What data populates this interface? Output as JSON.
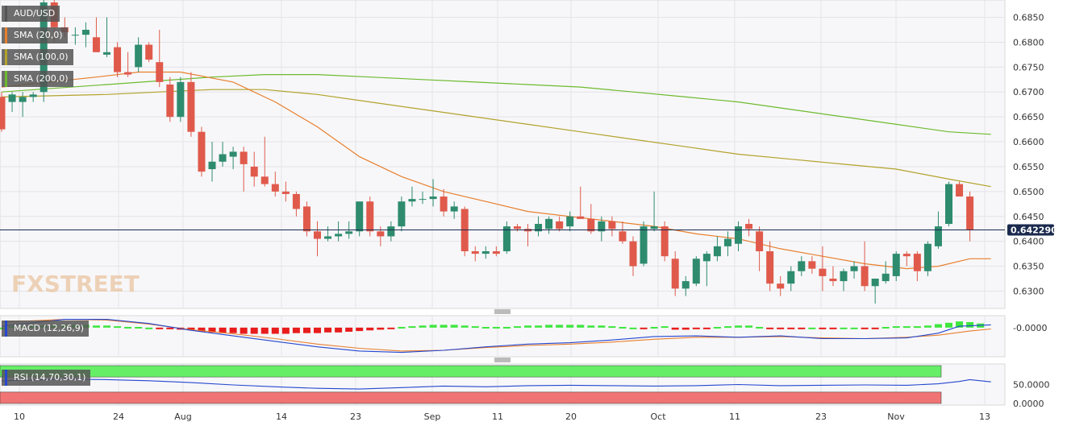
{
  "symbol": "AUD/USD",
  "brand_watermark": "FXSTREET",
  "colors": {
    "up": "#2e8b6e",
    "down": "#e05a4c",
    "sma20": "#e87f2e",
    "sma100": "#b3a22c",
    "sma200": "#6dba2e",
    "macd_line": "#2547d0",
    "macd_signal": "#e87f2e",
    "macd_hist_up": "#3ee63e",
    "macd_hist_down": "#e81c1c",
    "rsi_line": "#2547d0",
    "rsi_overbought": "#66ee66",
    "rsi_oversold": "#f07474",
    "price_line": "#1a2a4e"
  },
  "legend": {
    "main": [
      "AUD/USD",
      "SMA (20,0)",
      "SMA (100,0)",
      "SMA (200,0)"
    ],
    "macd": "MACD (12,26,9)",
    "rsi": "RSI (14,70,30,1)"
  },
  "price_tag": "0.642290",
  "main_y_ticks": [
    "0.6850",
    "0.6800",
    "0.6750",
    "0.6700",
    "0.6650",
    "0.6600",
    "0.6550",
    "0.6500",
    "0.6450",
    "0.6400",
    "0.6350",
    "0.6300"
  ],
  "macd_y_ticks": [
    "-0.0000"
  ],
  "rsi_y_ticks": [
    "50.0000",
    "0.0000"
  ],
  "x_ticks": [
    "10",
    "24",
    "Aug",
    "14",
    "23",
    "Sep",
    "11",
    "20",
    "Oct",
    "11",
    "23",
    "Nov",
    "13"
  ],
  "chart_data": {
    "type": "candlestick",
    "title": "AUD/USD",
    "ylim": [
      0.627,
      0.688
    ],
    "current_price": 0.64229,
    "candles": [
      [
        0.669,
        0.67,
        0.662,
        0.6625
      ],
      [
        0.668,
        0.67,
        0.666,
        0.6695
      ],
      [
        0.668,
        0.67,
        0.665,
        0.669
      ],
      [
        0.669,
        0.67,
        0.668,
        0.6695
      ],
      [
        0.67,
        0.689,
        0.668,
        0.688
      ],
      [
        0.688,
        0.69,
        0.68,
        0.683
      ],
      [
        0.683,
        0.685,
        0.681,
        0.682
      ],
      [
        0.6815,
        0.683,
        0.6795,
        0.6815
      ],
      [
        0.6815,
        0.684,
        0.679,
        0.6825
      ],
      [
        0.681,
        0.685,
        0.678,
        0.678
      ],
      [
        0.6775,
        0.685,
        0.677,
        0.678
      ],
      [
        0.679,
        0.68,
        0.673,
        0.674
      ],
      [
        0.674,
        0.678,
        0.673,
        0.6735
      ],
      [
        0.675,
        0.681,
        0.674,
        0.6795
      ],
      [
        0.6795,
        0.68,
        0.676,
        0.6765
      ],
      [
        0.676,
        0.6825,
        0.671,
        0.672
      ],
      [
        0.6715,
        0.673,
        0.664,
        0.665
      ],
      [
        0.665,
        0.673,
        0.664,
        0.672
      ],
      [
        0.672,
        0.674,
        0.661,
        0.662
      ],
      [
        0.662,
        0.663,
        0.653,
        0.654
      ],
      [
        0.6545,
        0.66,
        0.652,
        0.656
      ],
      [
        0.656,
        0.66,
        0.655,
        0.6575
      ],
      [
        0.657,
        0.659,
        0.6545,
        0.658
      ],
      [
        0.658,
        0.659,
        0.65,
        0.6555
      ],
      [
        0.655,
        0.658,
        0.651,
        0.653
      ],
      [
        0.653,
        0.661,
        0.651,
        0.6515
      ],
      [
        0.6515,
        0.654,
        0.649,
        0.65
      ],
      [
        0.65,
        0.652,
        0.648,
        0.6495
      ],
      [
        0.6495,
        0.65,
        0.645,
        0.6465
      ],
      [
        0.647,
        0.648,
        0.641,
        0.642
      ],
      [
        0.642,
        0.644,
        0.637,
        0.6405
      ],
      [
        0.6405,
        0.643,
        0.64,
        0.641
      ],
      [
        0.641,
        0.644,
        0.64,
        0.6415
      ],
      [
        0.6415,
        0.644,
        0.6405,
        0.642
      ],
      [
        0.642,
        0.648,
        0.641,
        0.648
      ],
      [
        0.648,
        0.649,
        0.641,
        0.642
      ],
      [
        0.642,
        0.643,
        0.639,
        0.641
      ],
      [
        0.641,
        0.644,
        0.64,
        0.643
      ],
      [
        0.643,
        0.649,
        0.642,
        0.648
      ],
      [
        0.648,
        0.651,
        0.647,
        0.6485
      ],
      [
        0.6485,
        0.65,
        0.6475,
        0.6485
      ],
      [
        0.6485,
        0.6525,
        0.647,
        0.649
      ],
      [
        0.649,
        0.6505,
        0.645,
        0.646
      ],
      [
        0.646,
        0.648,
        0.6445,
        0.647
      ],
      [
        0.6465,
        0.647,
        0.637,
        0.638
      ],
      [
        0.638,
        0.639,
        0.636,
        0.6375
      ],
      [
        0.6375,
        0.639,
        0.6365,
        0.638
      ],
      [
        0.638,
        0.639,
        0.637,
        0.6375
      ],
      [
        0.638,
        0.644,
        0.6375,
        0.643
      ],
      [
        0.643,
        0.6435,
        0.642,
        0.6425
      ],
      [
        0.6425,
        0.6435,
        0.639,
        0.642
      ],
      [
        0.642,
        0.645,
        0.641,
        0.6435
      ],
      [
        0.6425,
        0.645,
        0.6415,
        0.6445
      ],
      [
        0.644,
        0.645,
        0.642,
        0.6425
      ],
      [
        0.643,
        0.646,
        0.642,
        0.645
      ],
      [
        0.645,
        0.651,
        0.6445,
        0.6445
      ],
      [
        0.6445,
        0.6475,
        0.6415,
        0.642
      ],
      [
        0.642,
        0.645,
        0.64,
        0.644
      ],
      [
        0.644,
        0.645,
        0.641,
        0.6425
      ],
      [
        0.642,
        0.644,
        0.6395,
        0.64
      ],
      [
        0.64,
        0.641,
        0.633,
        0.635
      ],
      [
        0.6355,
        0.644,
        0.635,
        0.643
      ],
      [
        0.6425,
        0.65,
        0.642,
        0.643
      ],
      [
        0.643,
        0.644,
        0.636,
        0.637
      ],
      [
        0.6365,
        0.638,
        0.629,
        0.6305
      ],
      [
        0.6305,
        0.633,
        0.629,
        0.632
      ],
      [
        0.6315,
        0.637,
        0.631,
        0.6365
      ],
      [
        0.636,
        0.638,
        0.631,
        0.6375
      ],
      [
        0.637,
        0.641,
        0.636,
        0.639
      ],
      [
        0.639,
        0.642,
        0.637,
        0.6405
      ],
      [
        0.6395,
        0.644,
        0.638,
        0.643
      ],
      [
        0.6435,
        0.6445,
        0.641,
        0.6425
      ],
      [
        0.642,
        0.643,
        0.634,
        0.638
      ],
      [
        0.638,
        0.64,
        0.63,
        0.6315
      ],
      [
        0.6315,
        0.633,
        0.629,
        0.6305
      ],
      [
        0.6315,
        0.635,
        0.63,
        0.634
      ],
      [
        0.634,
        0.637,
        0.633,
        0.636
      ],
      [
        0.636,
        0.637,
        0.6335,
        0.6345
      ],
      [
        0.6345,
        0.639,
        0.63,
        0.633
      ],
      [
        0.6325,
        0.635,
        0.631,
        0.632
      ],
      [
        0.632,
        0.6345,
        0.63,
        0.634
      ],
      [
        0.634,
        0.636,
        0.6325,
        0.635
      ],
      [
        0.635,
        0.64,
        0.63,
        0.631
      ],
      [
        0.631,
        0.632,
        0.6275,
        0.6325
      ],
      [
        0.632,
        0.636,
        0.6315,
        0.6335
      ],
      [
        0.633,
        0.638,
        0.632,
        0.6375
      ],
      [
        0.6375,
        0.638,
        0.635,
        0.637
      ],
      [
        0.6375,
        0.638,
        0.632,
        0.634
      ],
      [
        0.634,
        0.64,
        0.633,
        0.6395
      ],
      [
        0.639,
        0.646,
        0.6385,
        0.643
      ],
      [
        0.6435,
        0.652,
        0.643,
        0.6515
      ],
      [
        0.6515,
        0.652,
        0.649,
        0.649
      ],
      [
        0.649,
        0.65,
        0.64,
        0.6423
      ]
    ],
    "sma20": [
      [
        0,
        0.671
      ],
      [
        9,
        0.673
      ],
      [
        13,
        0.674
      ],
      [
        17,
        0.674
      ],
      [
        22,
        0.672
      ],
      [
        26,
        0.668
      ],
      [
        30,
        0.663
      ],
      [
        34,
        0.657
      ],
      [
        38,
        0.653
      ],
      [
        42,
        0.65
      ],
      [
        46,
        0.648
      ],
      [
        50,
        0.646
      ],
      [
        54,
        0.645
      ],
      [
        58,
        0.644
      ],
      [
        62,
        0.643
      ],
      [
        66,
        0.6415
      ],
      [
        70,
        0.6405
      ],
      [
        74,
        0.6385
      ],
      [
        78,
        0.637
      ],
      [
        82,
        0.6355
      ],
      [
        86,
        0.6345
      ],
      [
        89,
        0.635
      ],
      [
        92,
        0.6365
      ],
      [
        94,
        0.6365
      ]
    ],
    "sma100": [
      [
        0,
        0.669
      ],
      [
        10,
        0.6695
      ],
      [
        15,
        0.67
      ],
      [
        20,
        0.6705
      ],
      [
        25,
        0.6705
      ],
      [
        30,
        0.6695
      ],
      [
        35,
        0.668
      ],
      [
        40,
        0.6665
      ],
      [
        45,
        0.665
      ],
      [
        50,
        0.6635
      ],
      [
        55,
        0.662
      ],
      [
        60,
        0.6605
      ],
      [
        65,
        0.659
      ],
      [
        70,
        0.6575
      ],
      [
        75,
        0.6565
      ],
      [
        80,
        0.6555
      ],
      [
        85,
        0.6545
      ],
      [
        90,
        0.6525
      ],
      [
        94,
        0.651
      ]
    ],
    "sma200": [
      [
        0,
        0.67
      ],
      [
        10,
        0.6715
      ],
      [
        20,
        0.673
      ],
      [
        25,
        0.6735
      ],
      [
        30,
        0.6735
      ],
      [
        35,
        0.673
      ],
      [
        40,
        0.6725
      ],
      [
        45,
        0.672
      ],
      [
        50,
        0.6715
      ],
      [
        55,
        0.671
      ],
      [
        60,
        0.67
      ],
      [
        65,
        0.669
      ],
      [
        70,
        0.668
      ],
      [
        75,
        0.6665
      ],
      [
        80,
        0.665
      ],
      [
        85,
        0.6635
      ],
      [
        90,
        0.662
      ],
      [
        94,
        0.6615
      ]
    ],
    "macd": {
      "ylim": [
        -0.004,
        0.0015
      ],
      "histogram": [
        0.0,
        0.0002,
        0.0002,
        0.0003,
        0.0003,
        0.0004,
        0.0004,
        0.0004,
        0.0004,
        0.0003,
        0.0003,
        0.0002,
        0.0001,
        0.0001,
        0.0,
        -0.0001,
        -0.0002,
        -0.0003,
        -0.0004,
        -0.0006,
        -0.0007,
        -0.0008,
        -0.0008,
        -0.0009,
        -0.0009,
        -0.0009,
        -0.0009,
        -0.0009,
        -0.0008,
        -0.0008,
        -0.0008,
        -0.0007,
        -0.0007,
        -0.0006,
        -0.0005,
        -0.0004,
        -0.0003,
        -0.0002,
        0.0001,
        0.0002,
        0.0003,
        0.0004,
        0.0004,
        0.0004,
        0.0003,
        0.0002,
        0.0001,
        0.0001,
        0.0001,
        0.0002,
        0.0003,
        0.0003,
        0.0004,
        0.0004,
        0.0004,
        0.0004,
        0.0003,
        0.0003,
        0.0002,
        0.0001,
        0.0,
        -0.0001,
        0.0001,
        0.0002,
        -0.0003,
        -0.0003,
        -0.0002,
        -0.0001,
        0.0001,
        0.0002,
        0.0003,
        0.0003,
        0.0001,
        -0.0001,
        -0.0002,
        -0.0001,
        -0.0001,
        0.0,
        -0.0001,
        -0.0001,
        0.0,
        0.0,
        -0.0001,
        -0.0001,
        0.0001,
        0.0002,
        0.0002,
        0.0002,
        0.0003,
        0.0005,
        0.0007,
        0.0009,
        0.0008,
        0.0006
      ],
      "line": [
        [
          0,
          0.0002
        ],
        [
          6,
          0.0012
        ],
        [
          10,
          0.0012
        ],
        [
          14,
          0.0006
        ],
        [
          18,
          -0.0004
        ],
        [
          22,
          -0.0012
        ],
        [
          26,
          -0.002
        ],
        [
          30,
          -0.0028
        ],
        [
          34,
          -0.0034
        ],
        [
          38,
          -0.0036
        ],
        [
          42,
          -0.0033
        ],
        [
          46,
          -0.0028
        ],
        [
          50,
          -0.0024
        ],
        [
          54,
          -0.0022
        ],
        [
          58,
          -0.0018
        ],
        [
          62,
          -0.0013
        ],
        [
          66,
          -0.0012
        ],
        [
          70,
          -0.0014
        ],
        [
          74,
          -0.0012
        ],
        [
          78,
          -0.0016
        ],
        [
          82,
          -0.0016
        ],
        [
          86,
          -0.0015
        ],
        [
          89,
          -0.0008
        ],
        [
          91,
          0.0002
        ],
        [
          94,
          0.0004
        ]
      ],
      "signal": [
        [
          0,
          0.0008
        ],
        [
          6,
          0.0012
        ],
        [
          10,
          0.0011
        ],
        [
          14,
          0.0005
        ],
        [
          18,
          -0.0003
        ],
        [
          22,
          -0.0009
        ],
        [
          26,
          -0.0016
        ],
        [
          30,
          -0.0024
        ],
        [
          34,
          -0.003
        ],
        [
          38,
          -0.0034
        ],
        [
          42,
          -0.0033
        ],
        [
          46,
          -0.0029
        ],
        [
          50,
          -0.0026
        ],
        [
          54,
          -0.0024
        ],
        [
          58,
          -0.0021
        ],
        [
          62,
          -0.0017
        ],
        [
          66,
          -0.0014
        ],
        [
          70,
          -0.0014
        ],
        [
          74,
          -0.0013
        ],
        [
          78,
          -0.0015
        ],
        [
          82,
          -0.0016
        ],
        [
          86,
          -0.0014
        ],
        [
          89,
          -0.0011
        ],
        [
          92,
          -0.0005
        ],
        [
          94,
          -0.0002
        ]
      ]
    },
    "rsi": {
      "ylim": [
        0,
        100
      ],
      "overbought": 70,
      "oversold": 30,
      "line": [
        [
          0,
          60
        ],
        [
          6,
          64
        ],
        [
          10,
          63
        ],
        [
          14,
          60
        ],
        [
          18,
          55
        ],
        [
          22,
          49
        ],
        [
          26,
          44
        ],
        [
          30,
          40
        ],
        [
          34,
          38
        ],
        [
          38,
          42
        ],
        [
          42,
          46
        ],
        [
          46,
          44
        ],
        [
          50,
          47
        ],
        [
          54,
          48
        ],
        [
          58,
          47
        ],
        [
          62,
          46
        ],
        [
          66,
          47
        ],
        [
          70,
          50
        ],
        [
          74,
          47
        ],
        [
          78,
          48
        ],
        [
          82,
          49
        ],
        [
          86,
          48
        ],
        [
          89,
          52
        ],
        [
          91,
          58
        ],
        [
          92,
          63
        ],
        [
          94,
          57
        ]
      ]
    }
  }
}
